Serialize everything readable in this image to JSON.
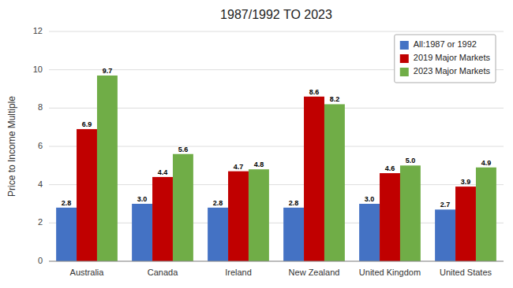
{
  "chart_data": {
    "type": "bar",
    "title": "1987/1992 TO 2023",
    "ylabel": "Price to Income Multiple",
    "categories": [
      "Australia",
      "Canada",
      "Ireland",
      "New Zealand",
      "United Kingdom",
      "United States"
    ],
    "series": [
      {
        "name": "All:1987 or 1992",
        "color": "#4472C4",
        "values": [
          2.8,
          3.0,
          2.8,
          2.8,
          3.0,
          2.7
        ],
        "value_labels": [
          "2.8",
          "3.0",
          "2.8",
          "2.8",
          "3.0",
          "2.7"
        ]
      },
      {
        "name": "2019 Major Markets",
        "color": "#C00000",
        "values": [
          6.9,
          4.4,
          4.7,
          8.6,
          4.6,
          3.9
        ],
        "value_labels": [
          "6.9",
          "4.4",
          "4.7",
          "8.6",
          "4.6",
          "3.9"
        ]
      },
      {
        "name": "2023 Major Markets",
        "color": "#70AD47",
        "values": [
          9.7,
          5.6,
          4.8,
          8.2,
          5.0,
          4.9
        ],
        "value_labels": [
          "9.7",
          "5.6",
          "4.8",
          "8.2",
          "5.0",
          "4.9"
        ]
      }
    ],
    "ylim": [
      0,
      12
    ],
    "yticks": [
      0,
      2,
      4,
      6,
      8,
      10,
      12
    ],
    "grid": true,
    "legend": "upper right",
    "data_labels": true
  }
}
